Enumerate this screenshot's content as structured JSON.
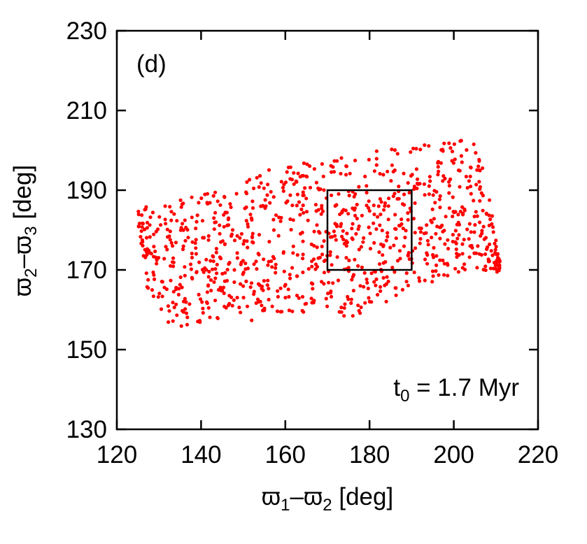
{
  "chart_data": {
    "type": "scatter",
    "panel_label": "(d)",
    "annotation": {
      "main": "t",
      "sub": "0",
      "rest": " = 1.7 Myr"
    },
    "xlabel": {
      "p1": "ϖ",
      "s1": "1",
      "mid": "–ϖ",
      "s2": "2",
      "tail": " [deg]"
    },
    "ylabel": {
      "p1": "ϖ",
      "s1": "2",
      "mid": "–ϖ",
      "s2": "3",
      "tail": " [deg]"
    },
    "xlim": [
      120,
      220
    ],
    "ylim": [
      130,
      230
    ],
    "xticks": [
      "120",
      "140",
      "160",
      "180",
      "200",
      "220"
    ],
    "yticks": [
      "130",
      "150",
      "170",
      "190",
      "210",
      "230"
    ],
    "marker_color": "#ff0000",
    "box": {
      "x": [
        170,
        190
      ],
      "y": [
        170,
        190
      ]
    },
    "point_cloud": {
      "count": 1000,
      "x_range": [
        125,
        211
      ],
      "y_range": [
        155,
        203
      ],
      "lower_boundary": [
        [
          125,
          182
        ],
        [
          128,
          158
        ],
        [
          135,
          155
        ],
        [
          140,
          157
        ],
        [
          150,
          158
        ],
        [
          155,
          156
        ],
        [
          160,
          159
        ],
        [
          170,
          160
        ],
        [
          175,
          158
        ],
        [
          180,
          159
        ],
        [
          185,
          162
        ],
        [
          190,
          165
        ],
        [
          195,
          167
        ],
        [
          200,
          169
        ],
        [
          205,
          170
        ],
        [
          211,
          169
        ]
      ],
      "upper_boundary": [
        [
          125,
          186
        ],
        [
          135,
          188
        ],
        [
          145,
          190
        ],
        [
          150,
          193
        ],
        [
          155,
          195
        ],
        [
          160,
          196
        ],
        [
          165,
          197
        ],
        [
          170,
          198
        ],
        [
          175,
          199
        ],
        [
          180,
          200
        ],
        [
          190,
          201
        ],
        [
          195,
          202
        ],
        [
          200,
          203
        ],
        [
          205,
          203
        ],
        [
          207,
          195
        ],
        [
          209,
          185
        ],
        [
          211,
          172
        ]
      ]
    }
  }
}
